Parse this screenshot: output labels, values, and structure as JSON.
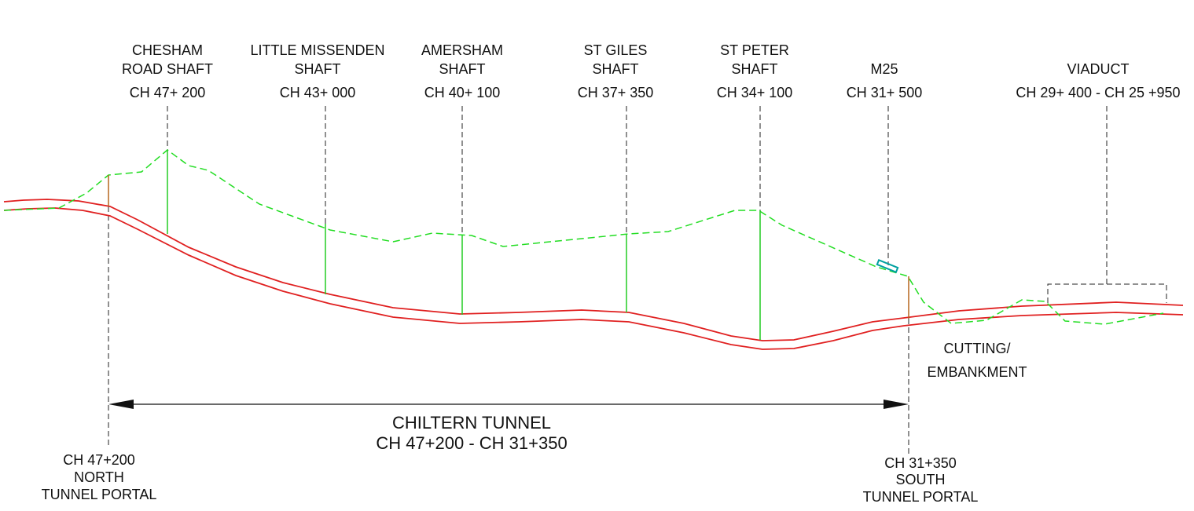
{
  "shafts": [
    {
      "lines": [
        "CHESHAM",
        "ROAD SHAFT",
        "CH 47+ 200"
      ]
    },
    {
      "lines": [
        "LITTLE MISSENDEN",
        "SHAFT",
        "CH 43+ 000"
      ]
    },
    {
      "lines": [
        "AMERSHAM",
        "SHAFT",
        "CH 40+ 100"
      ]
    },
    {
      "lines": [
        "ST GILES",
        "SHAFT",
        "CH 37+ 350"
      ]
    },
    {
      "lines": [
        "ST PETER",
        "SHAFT",
        "CH 34+ 100"
      ]
    }
  ],
  "m25": {
    "lines": [
      "M25",
      "CH 31+ 500"
    ]
  },
  "viaduct": {
    "lines": [
      "VIADUCT",
      "CH 29+ 400 - CH 25 +950"
    ]
  },
  "cutting": {
    "lines": [
      "CUTTING/",
      "EMBANKMENT"
    ]
  },
  "tunnel": {
    "lines": [
      "CHILTERN TUNNEL",
      "CH 47+200 - CH 31+350"
    ]
  },
  "north_portal": {
    "lines": [
      "CH 47+200",
      "NORTH",
      "TUNNEL PORTAL"
    ]
  },
  "south_portal": {
    "lines": [
      "CH 31+350",
      "SOUTH",
      "TUNNEL PORTAL"
    ]
  }
}
